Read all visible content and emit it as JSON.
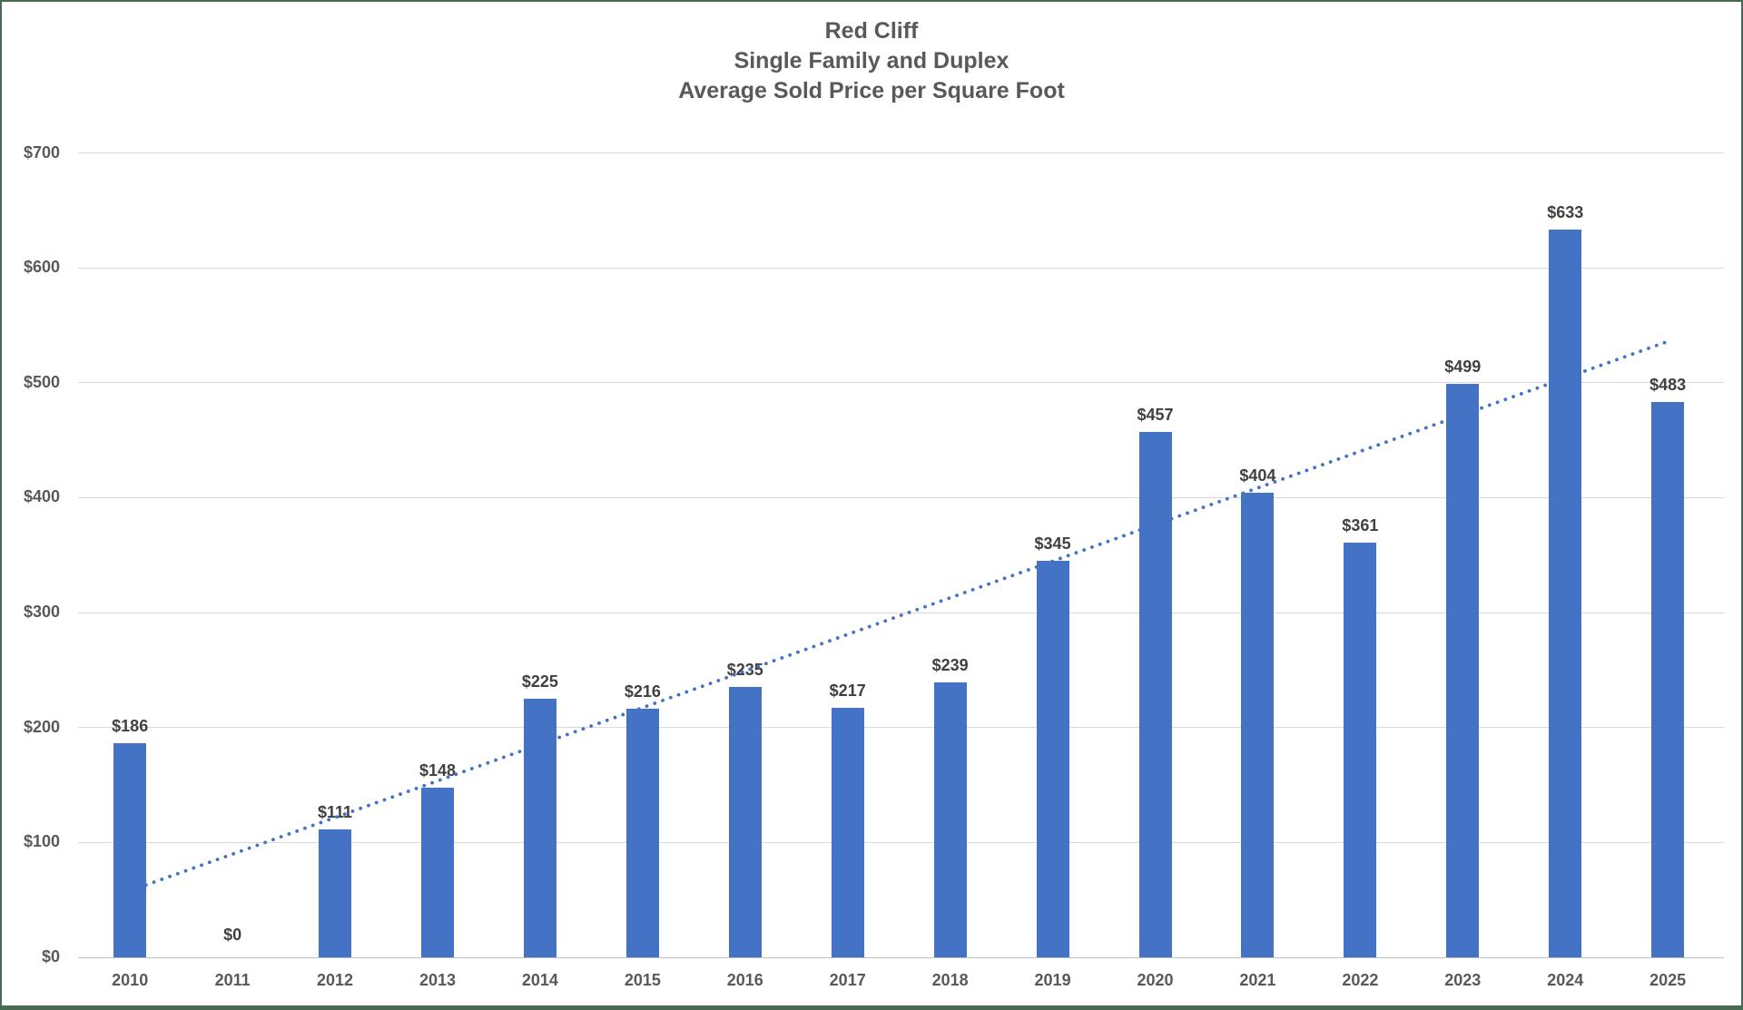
{
  "frame": {
    "border_color": "#4a6a52",
    "background_color": "#ffffff"
  },
  "chart_data": {
    "type": "bar",
    "title": "Red Cliff Single Family and Duplex Average Sold Price per Square Foot",
    "title_lines": [
      "Red Cliff",
      "Single Family and Duplex",
      "Average Sold Price per Square Foot"
    ],
    "categories": [
      "2010",
      "2011",
      "2012",
      "2013",
      "2014",
      "2015",
      "2016",
      "2017",
      "2018",
      "2019",
      "2020",
      "2021",
      "2022",
      "2023",
      "2024",
      "2025"
    ],
    "values": [
      186,
      0,
      111,
      148,
      225,
      216,
      235,
      217,
      239,
      345,
      457,
      404,
      361,
      499,
      633,
      483
    ],
    "data_labels": [
      "$186",
      "$0",
      "$111",
      "$148",
      "$225",
      "$216",
      "$235",
      "$217",
      "$239",
      "$345",
      "$457",
      "$404",
      "$361",
      "$499",
      "$633",
      "$483"
    ],
    "xlabel": "",
    "ylabel": "",
    "ylim": [
      0,
      700
    ],
    "ytick_interval": 100,
    "ytick_labels": [
      "$0",
      "$100",
      "$200",
      "$300",
      "$400",
      "$500",
      "$600",
      "$700"
    ],
    "grid": true,
    "legend_position": "none",
    "bar_color": "#4472c4",
    "label_color": "#404040",
    "axis_text_color": "#595959",
    "gridline_color": "#d9d9d9",
    "trendline": {
      "type": "linear",
      "style": "dotted",
      "color": "#4472c4",
      "start_value": 58,
      "end_value": 536
    }
  }
}
